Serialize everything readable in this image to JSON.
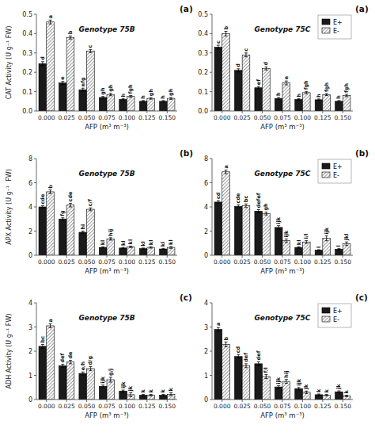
{
  "chart_data": [
    {
      "type": "bar",
      "title": "(a)",
      "subtitle": "Genotype 75B",
      "x_label": "AFP (m³ m⁻³)",
      "y_label": "CAT Activity (U g⁻¹ FW)",
      "categories": [
        "0.000",
        "0.025",
        "0.050",
        "0.075",
        "0.100",
        "0.125",
        "0.150"
      ],
      "ylim": [
        0,
        0.5
      ],
      "yticks": [
        {
          "value": 0,
          "label": "0.0"
        },
        0.1,
        0.2,
        0.3,
        0.4,
        0.5
      ],
      "grid": false,
      "series": [
        {
          "color": "#1a1a1a",
          "values": [
            0.245,
            0.145,
            0.11,
            0.07,
            0.06,
            0.05,
            0.05
          ],
          "errors": [
            0.01,
            0.008,
            0.008,
            0.005,
            0.004,
            0.004,
            0.004
          ],
          "annotations": [
            "d",
            "e",
            "efg",
            "gh",
            "h",
            "h",
            "h"
          ]
        },
        {
          "color": "#ffffff",
          "values": [
            0.46,
            0.38,
            0.31,
            0.085,
            0.075,
            0.065,
            0.065
          ],
          "errors": [
            0.01,
            0.008,
            0.008,
            0.006,
            0.005,
            0.004,
            0.005
          ],
          "annotations": [
            "a",
            "b",
            "c",
            "gh",
            "fgh",
            "gh",
            "gh"
          ]
        }
      ]
    },
    {
      "type": "bar",
      "title": "(a)",
      "subtitle": "Genotype 75C",
      "x_label": "AFP (m³ m⁻³)",
      "categories": [
        "0.000",
        "0.025",
        "0.050",
        "0.075",
        "0.100",
        "0.125",
        "0.150"
      ],
      "ylim": [
        0,
        0.5
      ],
      "yticks": [
        {
          "value": 0,
          "label": "0.0"
        },
        0.1,
        0.2,
        0.3,
        0.4,
        0.5
      ],
      "grid": false,
      "legend": "upper right",
      "series": [
        {
          "name": "E+",
          "color": "#1a1a1a",
          "values": [
            0.33,
            0.21,
            0.12,
            0.065,
            0.06,
            0.058,
            0.05
          ],
          "errors": [
            0.01,
            0.008,
            0.006,
            0.005,
            0.004,
            0.004,
            0.004
          ],
          "annotations": [
            "c",
            "d",
            "ef",
            "h",
            "h",
            "h",
            "h"
          ]
        },
        {
          "name": "E-",
          "color": "#ffffff",
          "values": [
            0.4,
            0.29,
            0.22,
            0.145,
            0.095,
            0.085,
            0.08
          ],
          "errors": [
            0.012,
            0.01,
            0.008,
            0.01,
            0.006,
            0.005,
            0.006
          ],
          "annotations": [
            "b",
            "c",
            "d",
            "e",
            "fgh",
            "fgh",
            "fgh"
          ]
        }
      ]
    },
    {
      "type": "bar",
      "title": "(b)",
      "subtitle": "Genotype 75B",
      "x_label": "AFP (m³ m⁻³)",
      "y_label": "APX Activity (U g⁻¹  FW)",
      "categories": [
        "0.000",
        "0.025",
        "0.050",
        "0.075",
        "0.100",
        "0.125",
        "0.150"
      ],
      "ylim": [
        0,
        8
      ],
      "yticks": [
        0,
        2,
        4,
        6,
        8
      ],
      "grid": false,
      "series": [
        {
          "color": "#1a1a1a",
          "values": [
            4.0,
            3.0,
            1.9,
            0.65,
            0.6,
            0.55,
            0.52
          ],
          "errors": [
            0.1,
            0.1,
            0.1,
            0.05,
            0.05,
            0.05,
            0.05
          ],
          "annotations": [
            "cde",
            "fg",
            "hi",
            "kl",
            "kl",
            "kl",
            "kl"
          ]
        },
        {
          "color": "#ffffff",
          "values": [
            5.25,
            4.15,
            3.8,
            1.35,
            0.7,
            0.65,
            0.65
          ],
          "errors": [
            0.15,
            0.15,
            0.12,
            0.1,
            0.06,
            0.06,
            0.08
          ],
          "annotations": [
            "b",
            "cde",
            "c/f",
            "hij",
            "kl",
            "kl",
            "kl"
          ]
        }
      ]
    },
    {
      "type": "bar",
      "title": "(b)",
      "subtitle": "Genotype 75C",
      "x_label": "AFP (m³ m⁻³)",
      "categories": [
        "0.000",
        "0.025",
        "0.050",
        "0.075",
        "0.100",
        "0.125",
        "0.150"
      ],
      "ylim": [
        0,
        8
      ],
      "yticks": [
        0,
        2,
        4,
        6,
        8
      ],
      "grid": false,
      "legend": "upper right",
      "series": [
        {
          "name": "E+",
          "color": "#1a1a1a",
          "values": [
            4.4,
            4.05,
            3.65,
            2.3,
            0.65,
            0.42,
            0.5
          ],
          "errors": [
            0.12,
            0.12,
            0.12,
            0.15,
            0.06,
            0.04,
            0.05
          ],
          "annotations": [
            "cd",
            "cde",
            "defef",
            "ijk",
            "kl",
            "l",
            "l"
          ]
        },
        {
          "name": "E-",
          "color": "#ffffff",
          "values": [
            6.9,
            4.1,
            3.45,
            1.2,
            1.1,
            1.4,
            0.95
          ],
          "errors": [
            0.15,
            0.15,
            0.12,
            0.15,
            0.12,
            0.2,
            0.15
          ],
          "annotations": [
            "a",
            "bc",
            "gh",
            "ijk",
            "i/l",
            "ijk",
            "jkl"
          ]
        }
      ]
    },
    {
      "type": "bar",
      "title": "(c)",
      "subtitle": "Genotype 75B",
      "x_label": "AFP (m³ m⁻³)",
      "y_label": "ADH Activity (U g⁻¹ FW)",
      "categories": [
        "0.000",
        "0.025",
        "0.050",
        "0.075",
        "0.100",
        "0.125",
        "0.150"
      ],
      "ylim": [
        0,
        4
      ],
      "yticks": [
        0,
        1,
        2,
        3,
        4
      ],
      "grid": false,
      "series": [
        {
          "color": "#1a1a1a",
          "values": [
            2.2,
            1.4,
            1.08,
            0.55,
            0.35,
            0.18,
            0.18
          ],
          "errors": [
            0.08,
            0.06,
            0.06,
            0.05,
            0.04,
            0.03,
            0.03
          ],
          "annotations": [
            "bc",
            "def",
            "e/h",
            "ijk",
            "ijk",
            "k",
            "k"
          ]
        },
        {
          "color": "#ffffff",
          "values": [
            3.05,
            1.55,
            1.28,
            0.82,
            0.2,
            0.18,
            0.22
          ],
          "errors": [
            0.08,
            0.07,
            0.08,
            0.1,
            0.08,
            0.03,
            0.06
          ],
          "annotations": [
            "a",
            "de",
            "d/g",
            "g/j",
            "jk",
            "k",
            "k"
          ]
        }
      ]
    },
    {
      "type": "bar",
      "title": "(c)",
      "subtitle": "Genotype 75C",
      "x_label": "AFP (m³ m⁻³)",
      "categories": [
        "0.000",
        "0.025",
        "0.050",
        "0.075",
        "0.100",
        "0.125",
        "0.150"
      ],
      "ylim": [
        0,
        4
      ],
      "yticks": [
        0,
        1,
        2,
        3,
        4
      ],
      "grid": false,
      "legend": "upper right",
      "series": [
        {
          "name": "E+",
          "color": "#1a1a1a",
          "values": [
            2.9,
            1.78,
            1.48,
            0.52,
            0.45,
            0.2,
            0.32
          ],
          "errors": [
            0.08,
            0.08,
            0.08,
            0.05,
            0.05,
            0.03,
            0.04
          ],
          "annotations": [
            "a",
            "cd",
            "def",
            "ijk",
            "ijk",
            "k",
            "jk"
          ]
        },
        {
          "name": "E-",
          "color": "#ffffff",
          "values": [
            2.28,
            1.4,
            0.95,
            0.75,
            0.3,
            0.18,
            0.15
          ],
          "errors": [
            0.1,
            0.08,
            0.08,
            0.08,
            0.05,
            0.03,
            0.03
          ],
          "annotations": [
            "b",
            "def",
            "f/l",
            "hij",
            "jk",
            "k",
            "k"
          ]
        }
      ]
    }
  ]
}
